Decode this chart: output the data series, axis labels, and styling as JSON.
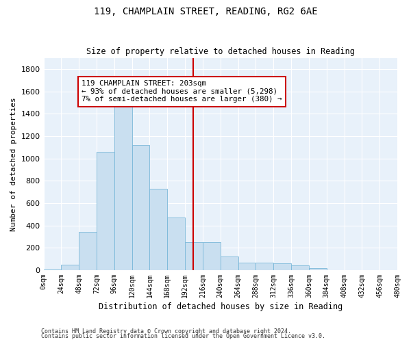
{
  "title1": "119, CHAMPLAIN STREET, READING, RG2 6AE",
  "title2": "Size of property relative to detached houses in Reading",
  "xlabel": "Distribution of detached houses by size in Reading",
  "ylabel": "Number of detached properties",
  "bar_color": "#c9dff0",
  "bar_edge_color": "#7ab8d9",
  "vline_color": "#cc0000",
  "vline_x": 203,
  "bin_edges": [
    0,
    24,
    48,
    72,
    96,
    120,
    144,
    168,
    192,
    216,
    240,
    264,
    288,
    312,
    336,
    360,
    384,
    408,
    432,
    456,
    480
  ],
  "bar_heights": [
    5,
    50,
    340,
    1060,
    1490,
    1120,
    730,
    470,
    250,
    250,
    120,
    70,
    70,
    60,
    40,
    20,
    0,
    0,
    0,
    0
  ],
  "annotation_text": "119 CHAMPLAIN STREET: 203sqm\n← 93% of detached houses are smaller (5,298)\n7% of semi-detached houses are larger (380) →",
  "annotation_box_color": "#ffffff",
  "annotation_box_edge_color": "#cc0000",
  "ylim": [
    0,
    1900
  ],
  "yticks": [
    0,
    200,
    400,
    600,
    800,
    1000,
    1200,
    1400,
    1600,
    1800
  ],
  "footer1": "Contains HM Land Registry data © Crown copyright and database right 2024.",
  "footer2": "Contains public sector information licensed under the Open Government Licence v3.0.",
  "background_color": "#e8f1fa"
}
